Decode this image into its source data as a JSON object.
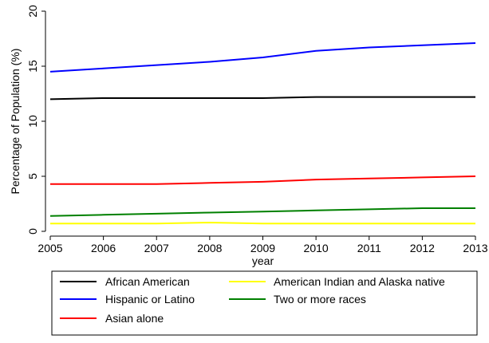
{
  "chart_data": {
    "type": "line",
    "xlabel": "year",
    "ylabel": "Percentage of Population (%)",
    "x": [
      2005,
      2006,
      2007,
      2008,
      2009,
      2010,
      2011,
      2012,
      2013
    ],
    "xlim": [
      2005,
      2013
    ],
    "ylim": [
      0,
      20
    ],
    "yticks": [
      0,
      5,
      10,
      15,
      20
    ],
    "grid": false,
    "legend_position": "bottom",
    "series": [
      {
        "name": "African American",
        "color": "#000000",
        "values": [
          12.0,
          12.1,
          12.1,
          12.1,
          12.1,
          12.2,
          12.2,
          12.2,
          12.2
        ]
      },
      {
        "name": "American Indian and Alaska native",
        "color": "#ffff00",
        "values": [
          0.7,
          0.7,
          0.7,
          0.8,
          0.7,
          0.7,
          0.7,
          0.7,
          0.7
        ]
      },
      {
        "name": "Hispanic or Latino",
        "color": "#0000ff",
        "values": [
          14.5,
          14.8,
          15.1,
          15.4,
          15.8,
          16.4,
          16.7,
          16.9,
          17.1
        ]
      },
      {
        "name": "Two or more races",
        "color": "#008000",
        "values": [
          1.4,
          1.5,
          1.6,
          1.7,
          1.8,
          1.9,
          2.0,
          2.1,
          2.1
        ]
      },
      {
        "name": "Asian alone",
        "color": "#ff0000",
        "values": [
          4.3,
          4.3,
          4.3,
          4.4,
          4.5,
          4.7,
          4.8,
          4.9,
          5.0
        ]
      }
    ]
  }
}
